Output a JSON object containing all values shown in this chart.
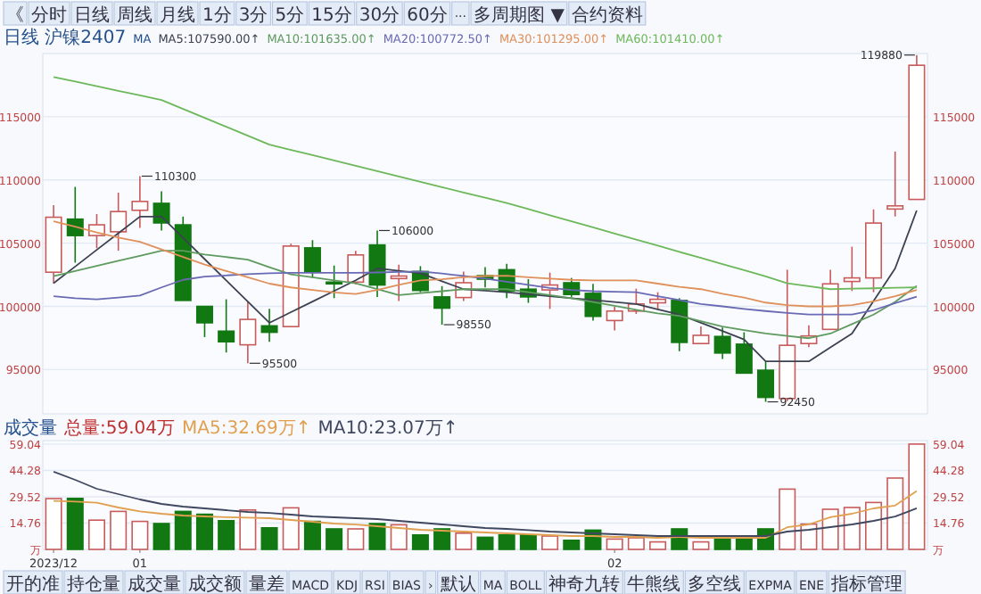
{
  "chart_data": [
    {
      "type": "other",
      "annotations": [
        "《",
        "分时",
        "日线",
        "周线",
        "月线",
        "1分",
        "3分",
        "5分",
        "15分",
        "30分",
        "60分",
        "···",
        "多周期图 ▼",
        "合约资料"
      ]
    },
    {
      "type": "candlestick",
      "title": "日线 沪镍2407",
      "legend_title": "MA",
      "legend": "top",
      "grid": "y",
      "value_labels": [
        null,
        null,
        null,
        null,
        "110300",
        null,
        null,
        null,
        null,
        "95500",
        null,
        null,
        null,
        null,
        null,
        "106000",
        null,
        null,
        "98550",
        null,
        null,
        null,
        null,
        null,
        null,
        null,
        null,
        null,
        null,
        null,
        null,
        null,
        null,
        "92450",
        null,
        null,
        null,
        null,
        null,
        null,
        "119880"
      ],
      "ylim": [
        91500,
        120000
      ],
      "yticks": [
        95000,
        100000,
        105000,
        110000,
        115000
      ],
      "y2lim": [
        91500,
        120000
      ],
      "y2ticks": [
        95000,
        100000,
        105000,
        110000,
        115000
      ],
      "ohlc": [
        [
          102700,
          108000,
          101800,
          107050
        ],
        [
          106900,
          109450,
          103460,
          105600
        ],
        [
          105600,
          107300,
          104600,
          106450
        ],
        [
          105900,
          109000,
          104400,
          107500
        ],
        [
          107600,
          110300,
          106200,
          108300
        ],
        [
          108150,
          109100,
          106000,
          106600
        ],
        [
          106450,
          107100,
          100470,
          100470
        ],
        [
          100000,
          100000,
          97570,
          98700
        ],
        [
          98040,
          100560,
          96350,
          97200
        ],
        [
          96960,
          100380,
          95500,
          98970
        ],
        [
          98460,
          99800,
          97200,
          97950
        ],
        [
          98400,
          104960,
          98400,
          104770
        ],
        [
          104630,
          105240,
          102250,
          102710
        ],
        [
          101920,
          103230,
          100650,
          101780
        ],
        [
          101920,
          104400,
          101730,
          104070
        ],
        [
          104860,
          106000,
          100750,
          101690
        ],
        [
          102200,
          103300,
          100420,
          102400
        ],
        [
          102760,
          103180,
          101120,
          101260
        ],
        [
          100750,
          101600,
          98550,
          99860
        ],
        [
          100700,
          102760,
          100420,
          101870
        ],
        [
          102430,
          103100,
          101500,
          102150
        ],
        [
          102900,
          103370,
          100650,
          101220
        ],
        [
          101360,
          102150,
          100280,
          100750
        ],
        [
          101300,
          102670,
          99800,
          101690
        ],
        [
          101870,
          102250,
          100750,
          100940
        ],
        [
          101030,
          101780,
          98880,
          99210
        ],
        [
          98880,
          99960,
          98090,
          99630
        ],
        [
          99630,
          101400,
          99400,
          100190
        ],
        [
          100280,
          101120,
          99800,
          100560
        ],
        [
          100470,
          100650,
          96450,
          97150
        ],
        [
          97060,
          98410,
          97060,
          97710
        ],
        [
          97620,
          98320,
          95840,
          96310
        ],
        [
          97010,
          97950,
          94720,
          94720
        ],
        [
          94950,
          95600,
          92450,
          92800
        ],
        [
          92710,
          102900,
          92500,
          96920
        ],
        [
          97060,
          98500,
          96780,
          97660
        ],
        [
          98180,
          102900,
          98180,
          101780
        ],
        [
          101970,
          104720,
          101220,
          102250
        ],
        [
          102250,
          107670,
          101120,
          106590
        ],
        [
          107700,
          112250,
          107110,
          107950
        ],
        [
          108460,
          119880,
          108460,
          119070
        ]
      ],
      "colors": [
        "#c85a5a",
        "#127812",
        "#c85a5a",
        "#c85a5a",
        "#c85a5a",
        "#127812",
        "#127812",
        "#127812",
        "#127812",
        "#c85a5a",
        "#127812",
        "#c85a5a",
        "#127812",
        "#127812",
        "#c85a5a",
        "#127812",
        "#c85a5a",
        "#127812",
        "#127812",
        "#c85a5a",
        "#127812",
        "#127812",
        "#127812",
        "#c85a5a",
        "#127812",
        "#127812",
        "#c85a5a",
        "#c85a5a",
        "#c85a5a",
        "#127812",
        "#c85a5a",
        "#127812",
        "#127812",
        "#127812",
        "#c85a5a",
        "#c85a5a",
        "#c85a5a",
        "#c85a5a",
        "#c85a5a",
        "#c85a5a",
        "#c85a5a"
      ],
      "series": [
        {
          "type": "line",
          "name": "MA5:107590.00↑",
          "color": "#3c4250",
          "values": [
            101830,
            103150,
            104470,
            105780,
            107100,
            107100,
            105420,
            103740,
            102060,
            100380,
            98700,
            99540,
            100380,
            101220,
            102060,
            103000,
            102810,
            102620,
            101990,
            101360,
            101240,
            101120,
            100960,
            100810,
            100650,
            100500,
            100350,
            100190,
            99770,
            99350,
            98700,
            98050,
            97380,
            95650,
            95650,
            95650,
            96750,
            97850,
            100420,
            103000,
            107580
          ]
        },
        {
          "type": "line",
          "name": "MA10:101635.00↑",
          "color": "#5f9a5f",
          "values": [
            102390,
            102800,
            103200,
            103600,
            104000,
            104400,
            104400,
            104100,
            103900,
            103700,
            103100,
            102530,
            102300,
            102050,
            101830,
            101360,
            100890,
            101050,
            101200,
            101360,
            101360,
            101360,
            101120,
            100890,
            100650,
            100350,
            100040,
            99730,
            99450,
            99250,
            98830,
            98410,
            98130,
            97850,
            97660,
            97480,
            97850,
            98600,
            99350,
            100350,
            101630
          ]
        },
        {
          "type": "line",
          "name": "MA20:100772.50↑",
          "color": "#6a6ab4",
          "values": [
            100800,
            100650,
            100560,
            100700,
            100850,
            101500,
            102100,
            102350,
            102450,
            102550,
            102620,
            102650,
            102650,
            102650,
            102650,
            102680,
            102720,
            102760,
            102600,
            102400,
            102200,
            101950,
            101700,
            101450,
            101300,
            101200,
            101150,
            101120,
            100800,
            100500,
            100190,
            100000,
            99800,
            99630,
            99480,
            99350,
            99350,
            99350,
            99700,
            100250,
            100770
          ]
        },
        {
          "type": "line",
          "name": "MA30:101295.00↑",
          "color": "#e0905a",
          "values": [
            106730,
            106300,
            105850,
            105450,
            105100,
            104500,
            103900,
            103300,
            102800,
            102300,
            101800,
            101500,
            101300,
            101100,
            100980,
            101300,
            101700,
            102050,
            102150,
            102300,
            102400,
            102430,
            102300,
            102200,
            102100,
            102060,
            102060,
            102060,
            101800,
            101550,
            101360,
            101000,
            100700,
            100300,
            100100,
            100000,
            100000,
            100100,
            100400,
            100800,
            101300
          ]
        },
        {
          "type": "line",
          "name": "MA60:101410.00↑",
          "color": "#6db85a",
          "values": [
            118140,
            117780,
            117420,
            117050,
            116690,
            116320,
            115620,
            114910,
            114210,
            113500,
            112800,
            112380,
            111960,
            111540,
            111120,
            110700,
            110270,
            109850,
            109430,
            109010,
            108590,
            108180,
            107700,
            107210,
            106730,
            106250,
            105760,
            105280,
            104800,
            104310,
            103830,
            103350,
            102860,
            102380,
            101830,
            101600,
            101360,
            101400,
            101430,
            101470,
            101500
          ]
        }
      ]
    },
    {
      "type": "bar",
      "title": "成交量",
      "subtitle": "总量:59.04万",
      "legend": "top",
      "grid": "y",
      "categories": [
        "2023/12",
        null,
        null,
        null,
        "01",
        null,
        null,
        null,
        null,
        null,
        null,
        null,
        null,
        null,
        null,
        null,
        null,
        null,
        null,
        null,
        null,
        null,
        null,
        null,
        null,
        null,
        "02",
        null,
        null,
        null,
        null,
        null,
        null,
        null,
        null,
        null,
        null,
        null,
        null,
        null,
        null
      ],
      "ylim": [
        0,
        61
      ],
      "yticks": [
        {
          "value": 0,
          "label": "万"
        },
        14.76,
        29.52,
        44.28,
        59.04
      ],
      "y2lim": [
        0,
        61
      ],
      "y2ticks": [
        {
          "value": 0,
          "label": "万"
        },
        14.76,
        29.52,
        44.28,
        59.04
      ],
      "series": [
        {
          "type": "bar",
          "colors": [
            "#c85a5a",
            "#127812",
            "#c85a5a",
            "#c85a5a",
            "#c85a5a",
            "#127812",
            "#127812",
            "#127812",
            "#127812",
            "#c85a5a",
            "#127812",
            "#c85a5a",
            "#127812",
            "#127812",
            "#c85a5a",
            "#127812",
            "#c85a5a",
            "#127812",
            "#127812",
            "#c85a5a",
            "#127812",
            "#127812",
            "#127812",
            "#c85a5a",
            "#127812",
            "#127812",
            "#c85a5a",
            "#c85a5a",
            "#c85a5a",
            "#127812",
            "#c85a5a",
            "#127812",
            "#127812",
            "#127812",
            "#c85a5a",
            "#c85a5a",
            "#c85a5a",
            "#c85a5a",
            "#c85a5a",
            "#c85a5a",
            "#c85a5a"
          ],
          "values": [
            28.5,
            28.6,
            16.4,
            21.3,
            15.7,
            14.5,
            21.3,
            19.7,
            16.1,
            22.1,
            12.1,
            23.3,
            15.7,
            11.5,
            11.5,
            14.5,
            13.8,
            8.1,
            11.5,
            9.1,
            6.8,
            8.1,
            8.1,
            7.5,
            5.1,
            10.8,
            5.8,
            6.5,
            4.2,
            11.5,
            4.2,
            5.6,
            5.8,
            11.5,
            33.8,
            14.2,
            22.5,
            23.5,
            26.3,
            40.0,
            59.04
          ]
        },
        {
          "type": "line",
          "name": "MA5:32.69万↑",
          "color": "#e0a050",
          "values": [
            27.2,
            26.8,
            26.2,
            23.5,
            21.3,
            20,
            19,
            18.5,
            18.1,
            17.8,
            17.5,
            16.5,
            15.5,
            14.5,
            13.9,
            13,
            12,
            11,
            10.5,
            10,
            9.5,
            9,
            8.5,
            8,
            7.5,
            7.5,
            7,
            7,
            6.5,
            7,
            6.5,
            6.5,
            6.5,
            6.5,
            12.4,
            14,
            18.1,
            20,
            23,
            24.6,
            32.69
          ]
        },
        {
          "type": "line",
          "name": "MA10:23.07万↑",
          "color": "#404860",
          "values": [
            43.6,
            39,
            34,
            31,
            28,
            25.5,
            24,
            23,
            22,
            21,
            20.4,
            19.5,
            18.5,
            18,
            17.5,
            17,
            16,
            15,
            14,
            13,
            12,
            11.5,
            10.8,
            10,
            9.5,
            9,
            8.5,
            8,
            7.5,
            7.5,
            7.5,
            7.5,
            7.5,
            7.5,
            10,
            11,
            12.5,
            14,
            16,
            18.4,
            23.07
          ]
        }
      ]
    },
    {
      "type": "other",
      "annotations": [
        "开的准",
        "持仓量",
        "成交量",
        "成交额",
        "量差",
        "MACD",
        "KDJ",
        "RSI",
        "BIAS",
        "›",
        "默认",
        "MA",
        "BOLL",
        "神奇九转",
        "牛熊线",
        "多空线",
        "EXPMA",
        "ENE",
        "指标管理"
      ]
    }
  ]
}
